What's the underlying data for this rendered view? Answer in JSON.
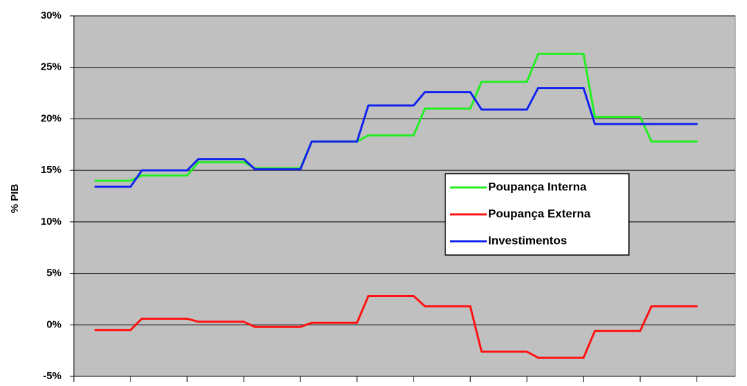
{
  "chart_data": {
    "type": "line",
    "y_label": "% PIB",
    "xlim": [
      0,
      11.68
    ],
    "xticks": [
      0,
      1,
      2,
      3,
      4,
      5,
      6,
      7,
      8,
      9,
      10,
      11
    ],
    "ylim": [
      -5,
      30
    ],
    "yticks": [
      {
        "value": -5,
        "label": "-5%"
      },
      {
        "value": 0,
        "label": "0%"
      },
      {
        "value": 5,
        "label": "5%"
      },
      {
        "value": 10,
        "label": "10%"
      },
      {
        "value": 15,
        "label": "15%"
      },
      {
        "value": 20,
        "label": "20%"
      },
      {
        "value": 25,
        "label": "25%"
      },
      {
        "value": 30,
        "label": "30%"
      }
    ],
    "grid": true,
    "legend_position": "right",
    "series": [
      {
        "name": "Poupança Interna",
        "color": "#22ee22",
        "values": [
          14.0,
          14.5,
          15.8,
          15.2,
          17.8,
          18.4,
          21.0,
          23.6,
          26.3,
          20.2,
          17.8
        ]
      },
      {
        "name": "Poupança Externa",
        "color": "#ff1111",
        "values": [
          -0.5,
          0.6,
          0.3,
          -0.2,
          0.2,
          2.8,
          1.8,
          -2.6,
          -3.2,
          -0.6,
          1.8
        ]
      },
      {
        "name": "Investimentos",
        "color": "#1122ee",
        "values": [
          13.4,
          15.0,
          16.1,
          15.1,
          17.8,
          21.3,
          22.6,
          20.9,
          23.0,
          19.5,
          19.5
        ]
      }
    ]
  }
}
